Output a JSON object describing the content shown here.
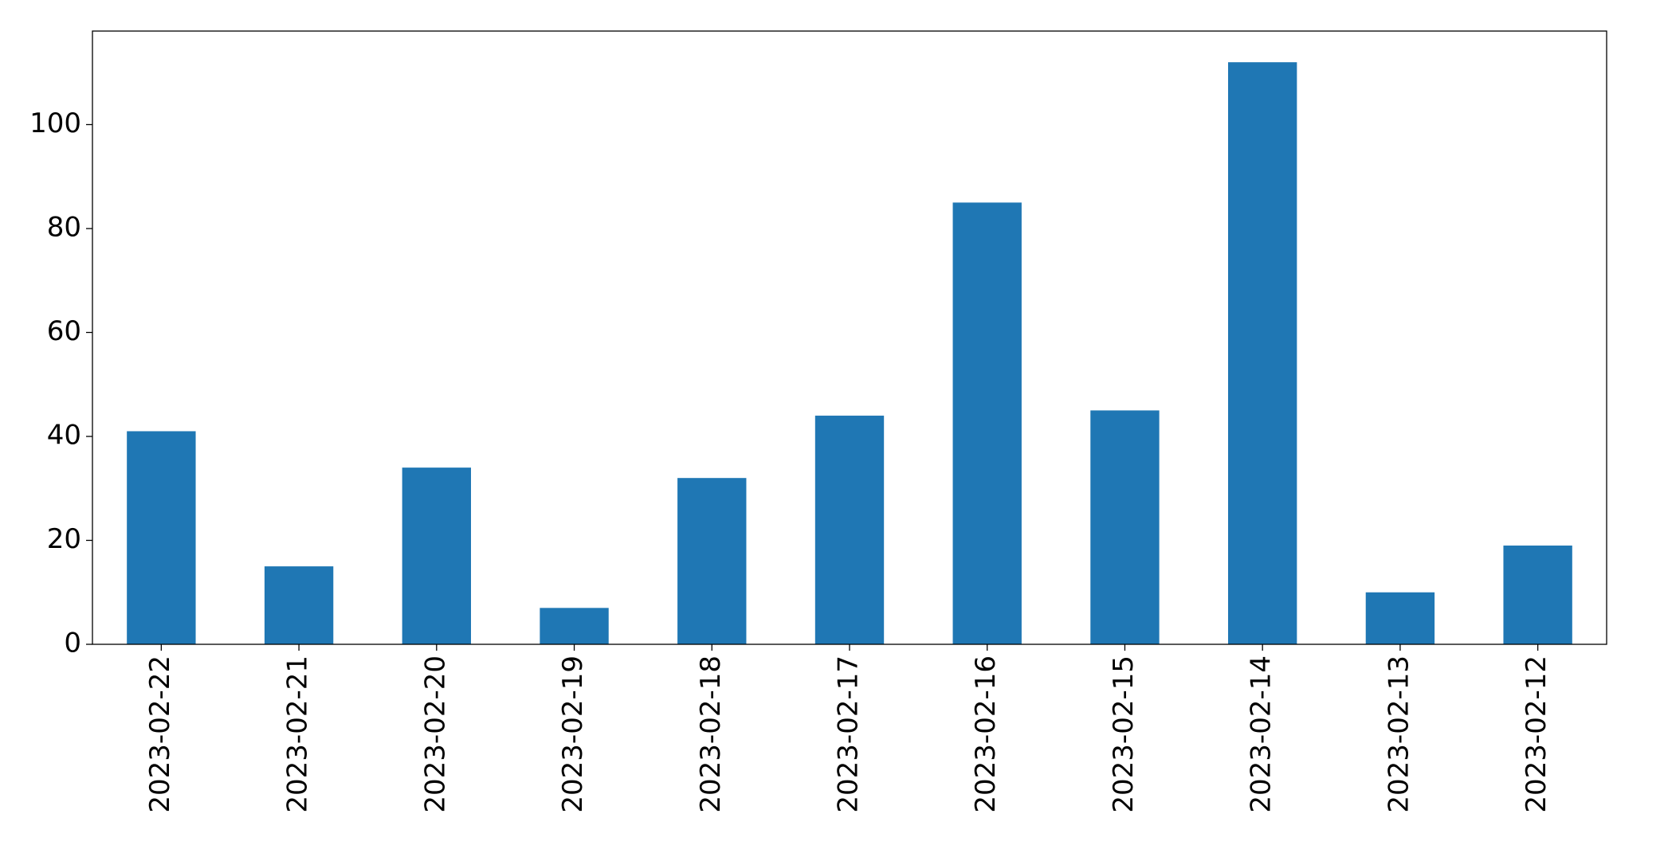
{
  "chart_data": {
    "type": "bar",
    "categories": [
      "2023-02-22",
      "2023-02-21",
      "2023-02-20",
      "2023-02-19",
      "2023-02-18",
      "2023-02-17",
      "2023-02-16",
      "2023-02-15",
      "2023-02-14",
      "2023-02-13",
      "2023-02-12"
    ],
    "values": [
      41,
      15,
      34,
      7,
      32,
      44,
      85,
      45,
      112,
      10,
      19
    ],
    "color": "#1f77b4",
    "ylim": [
      0,
      118
    ],
    "yticks": [
      0,
      20,
      40,
      60,
      80,
      100
    ],
    "grid": false
  }
}
